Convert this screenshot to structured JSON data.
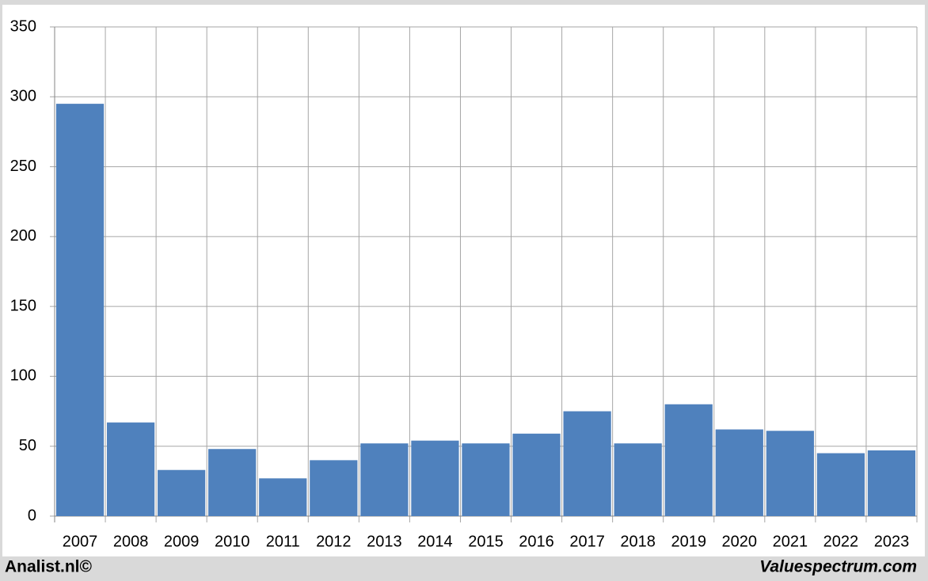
{
  "chart_data": {
    "type": "bar",
    "categories": [
      "2007",
      "2008",
      "2009",
      "2010",
      "2011",
      "2012",
      "2013",
      "2014",
      "2015",
      "2016",
      "2017",
      "2018",
      "2019",
      "2020",
      "2021",
      "2022",
      "2023"
    ],
    "values": [
      295,
      67,
      33,
      48,
      27,
      40,
      52,
      54,
      52,
      59,
      75,
      52,
      80,
      62,
      61,
      45,
      47
    ],
    "color": "#4f81bd",
    "ylim": [
      0,
      350
    ],
    "yticks": [
      0,
      50,
      100,
      150,
      200,
      250,
      300,
      350
    ],
    "grid": true
  },
  "footer": {
    "left": "Analist.nl©",
    "right": "Valuespectrum.com"
  }
}
